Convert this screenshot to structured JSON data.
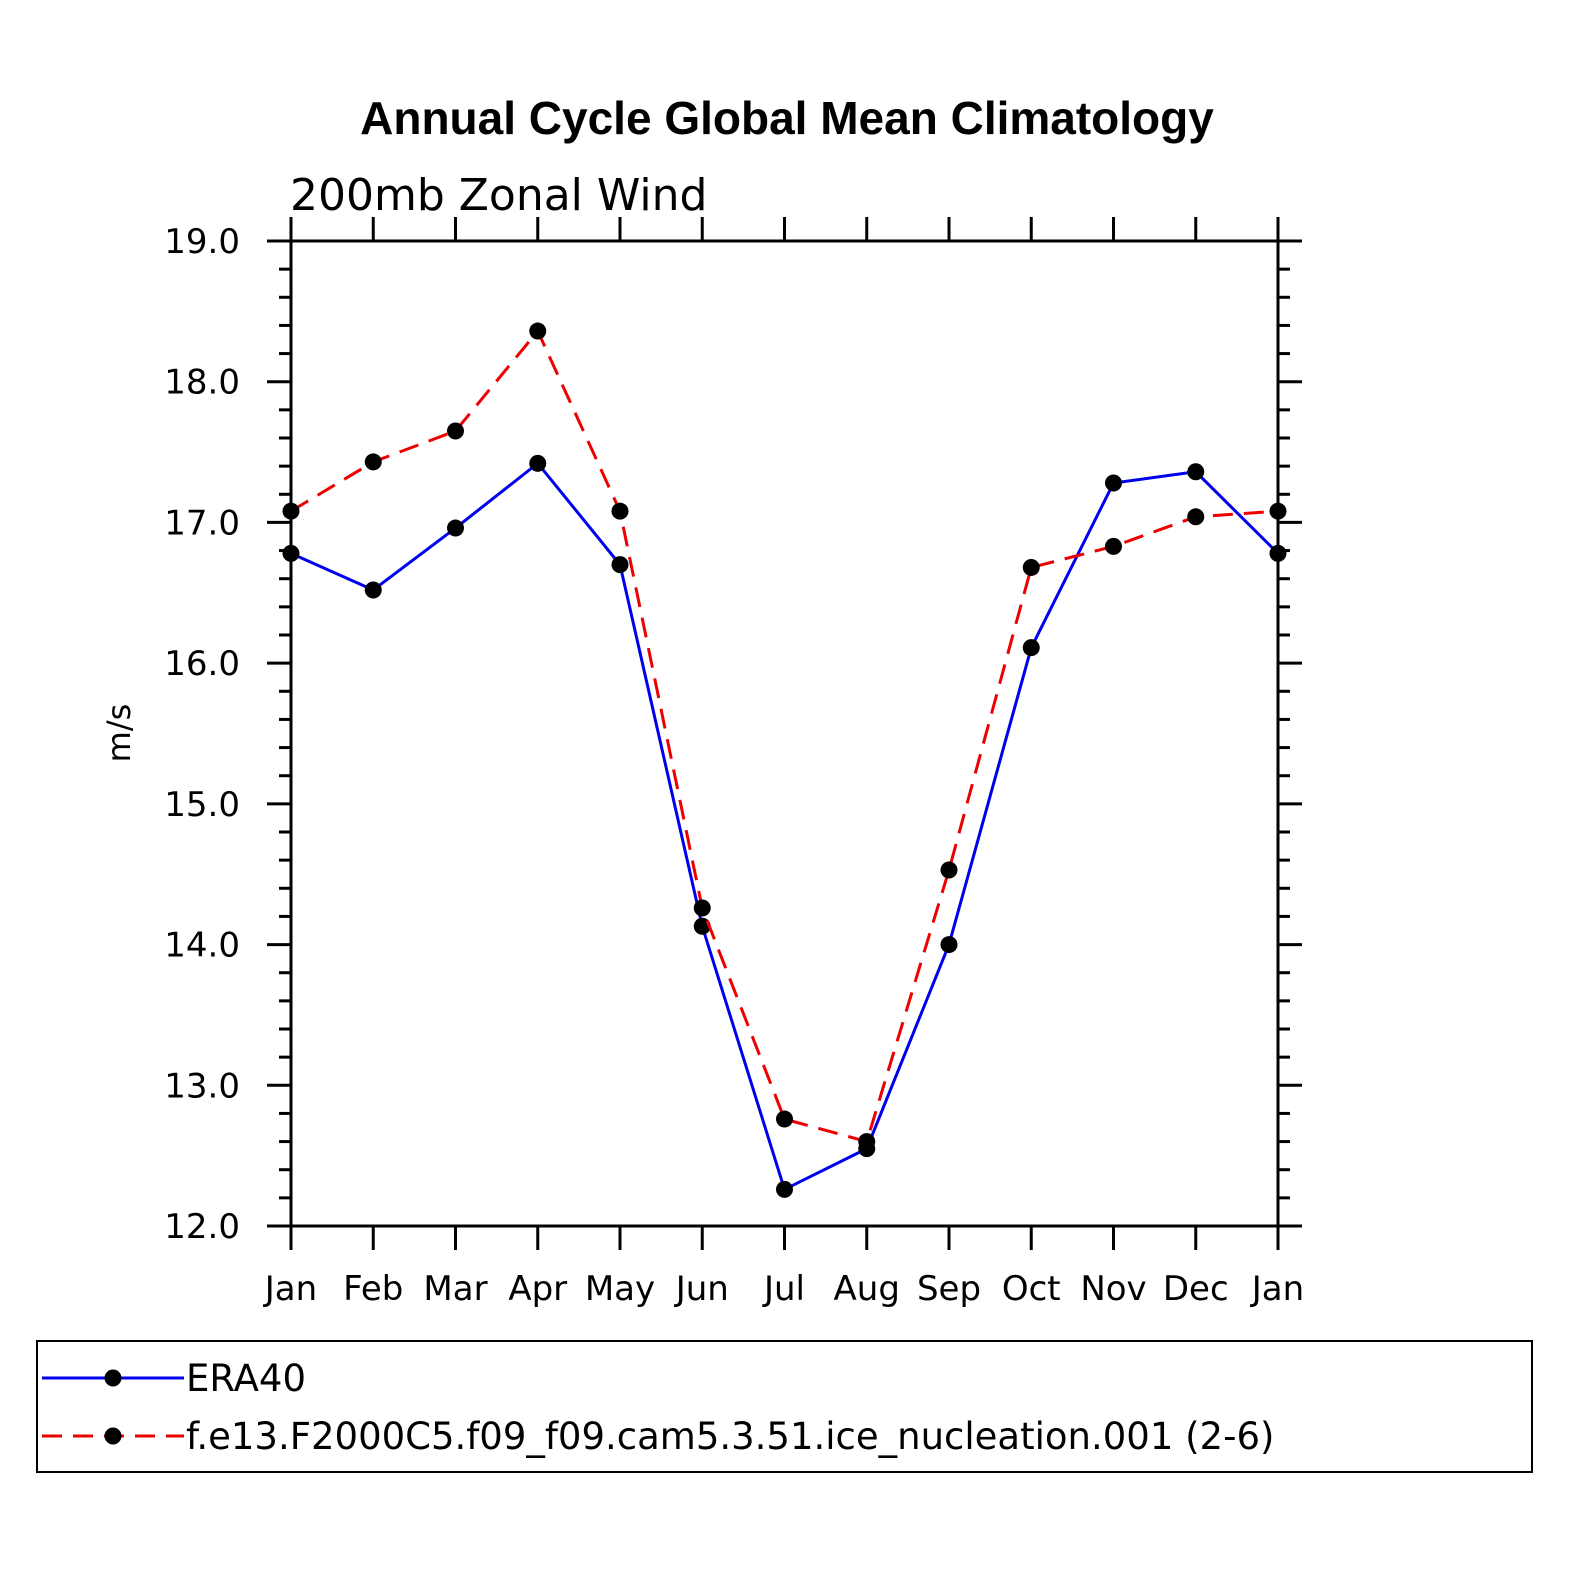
{
  "chart_data": {
    "type": "line",
    "title": "Annual Cycle Global Mean Climatology",
    "subtitle": "200mb Zonal Wind",
    "ylabel": "m/s",
    "xlabel": "",
    "categories": [
      "Jan",
      "Feb",
      "Mar",
      "Apr",
      "May",
      "Jun",
      "Jul",
      "Aug",
      "Sep",
      "Oct",
      "Nov",
      "Dec",
      "Jan"
    ],
    "ylim": [
      12.0,
      19.0
    ],
    "yticks": [
      "12.0",
      "13.0",
      "14.0",
      "15.0",
      "16.0",
      "17.0",
      "18.0",
      "19.0"
    ],
    "grid": false,
    "legend_position": "bottom",
    "series": [
      {
        "name": "ERA40",
        "color": "#0000ee",
        "dash": "solid",
        "values": [
          16.78,
          16.52,
          16.96,
          17.42,
          16.7,
          14.13,
          12.26,
          12.55,
          14.0,
          16.11,
          17.28,
          17.36,
          16.78
        ]
      },
      {
        "name": "f.e13.F2000C5.f09_f09.cam5.3.51.ice_nucleation.001 (2-6)",
        "color": "#ee0000",
        "dash": "dashed",
        "values": [
          17.08,
          17.43,
          17.65,
          18.36,
          17.08,
          14.26,
          12.76,
          12.6,
          14.53,
          16.68,
          16.83,
          17.04,
          17.08
        ]
      }
    ]
  }
}
